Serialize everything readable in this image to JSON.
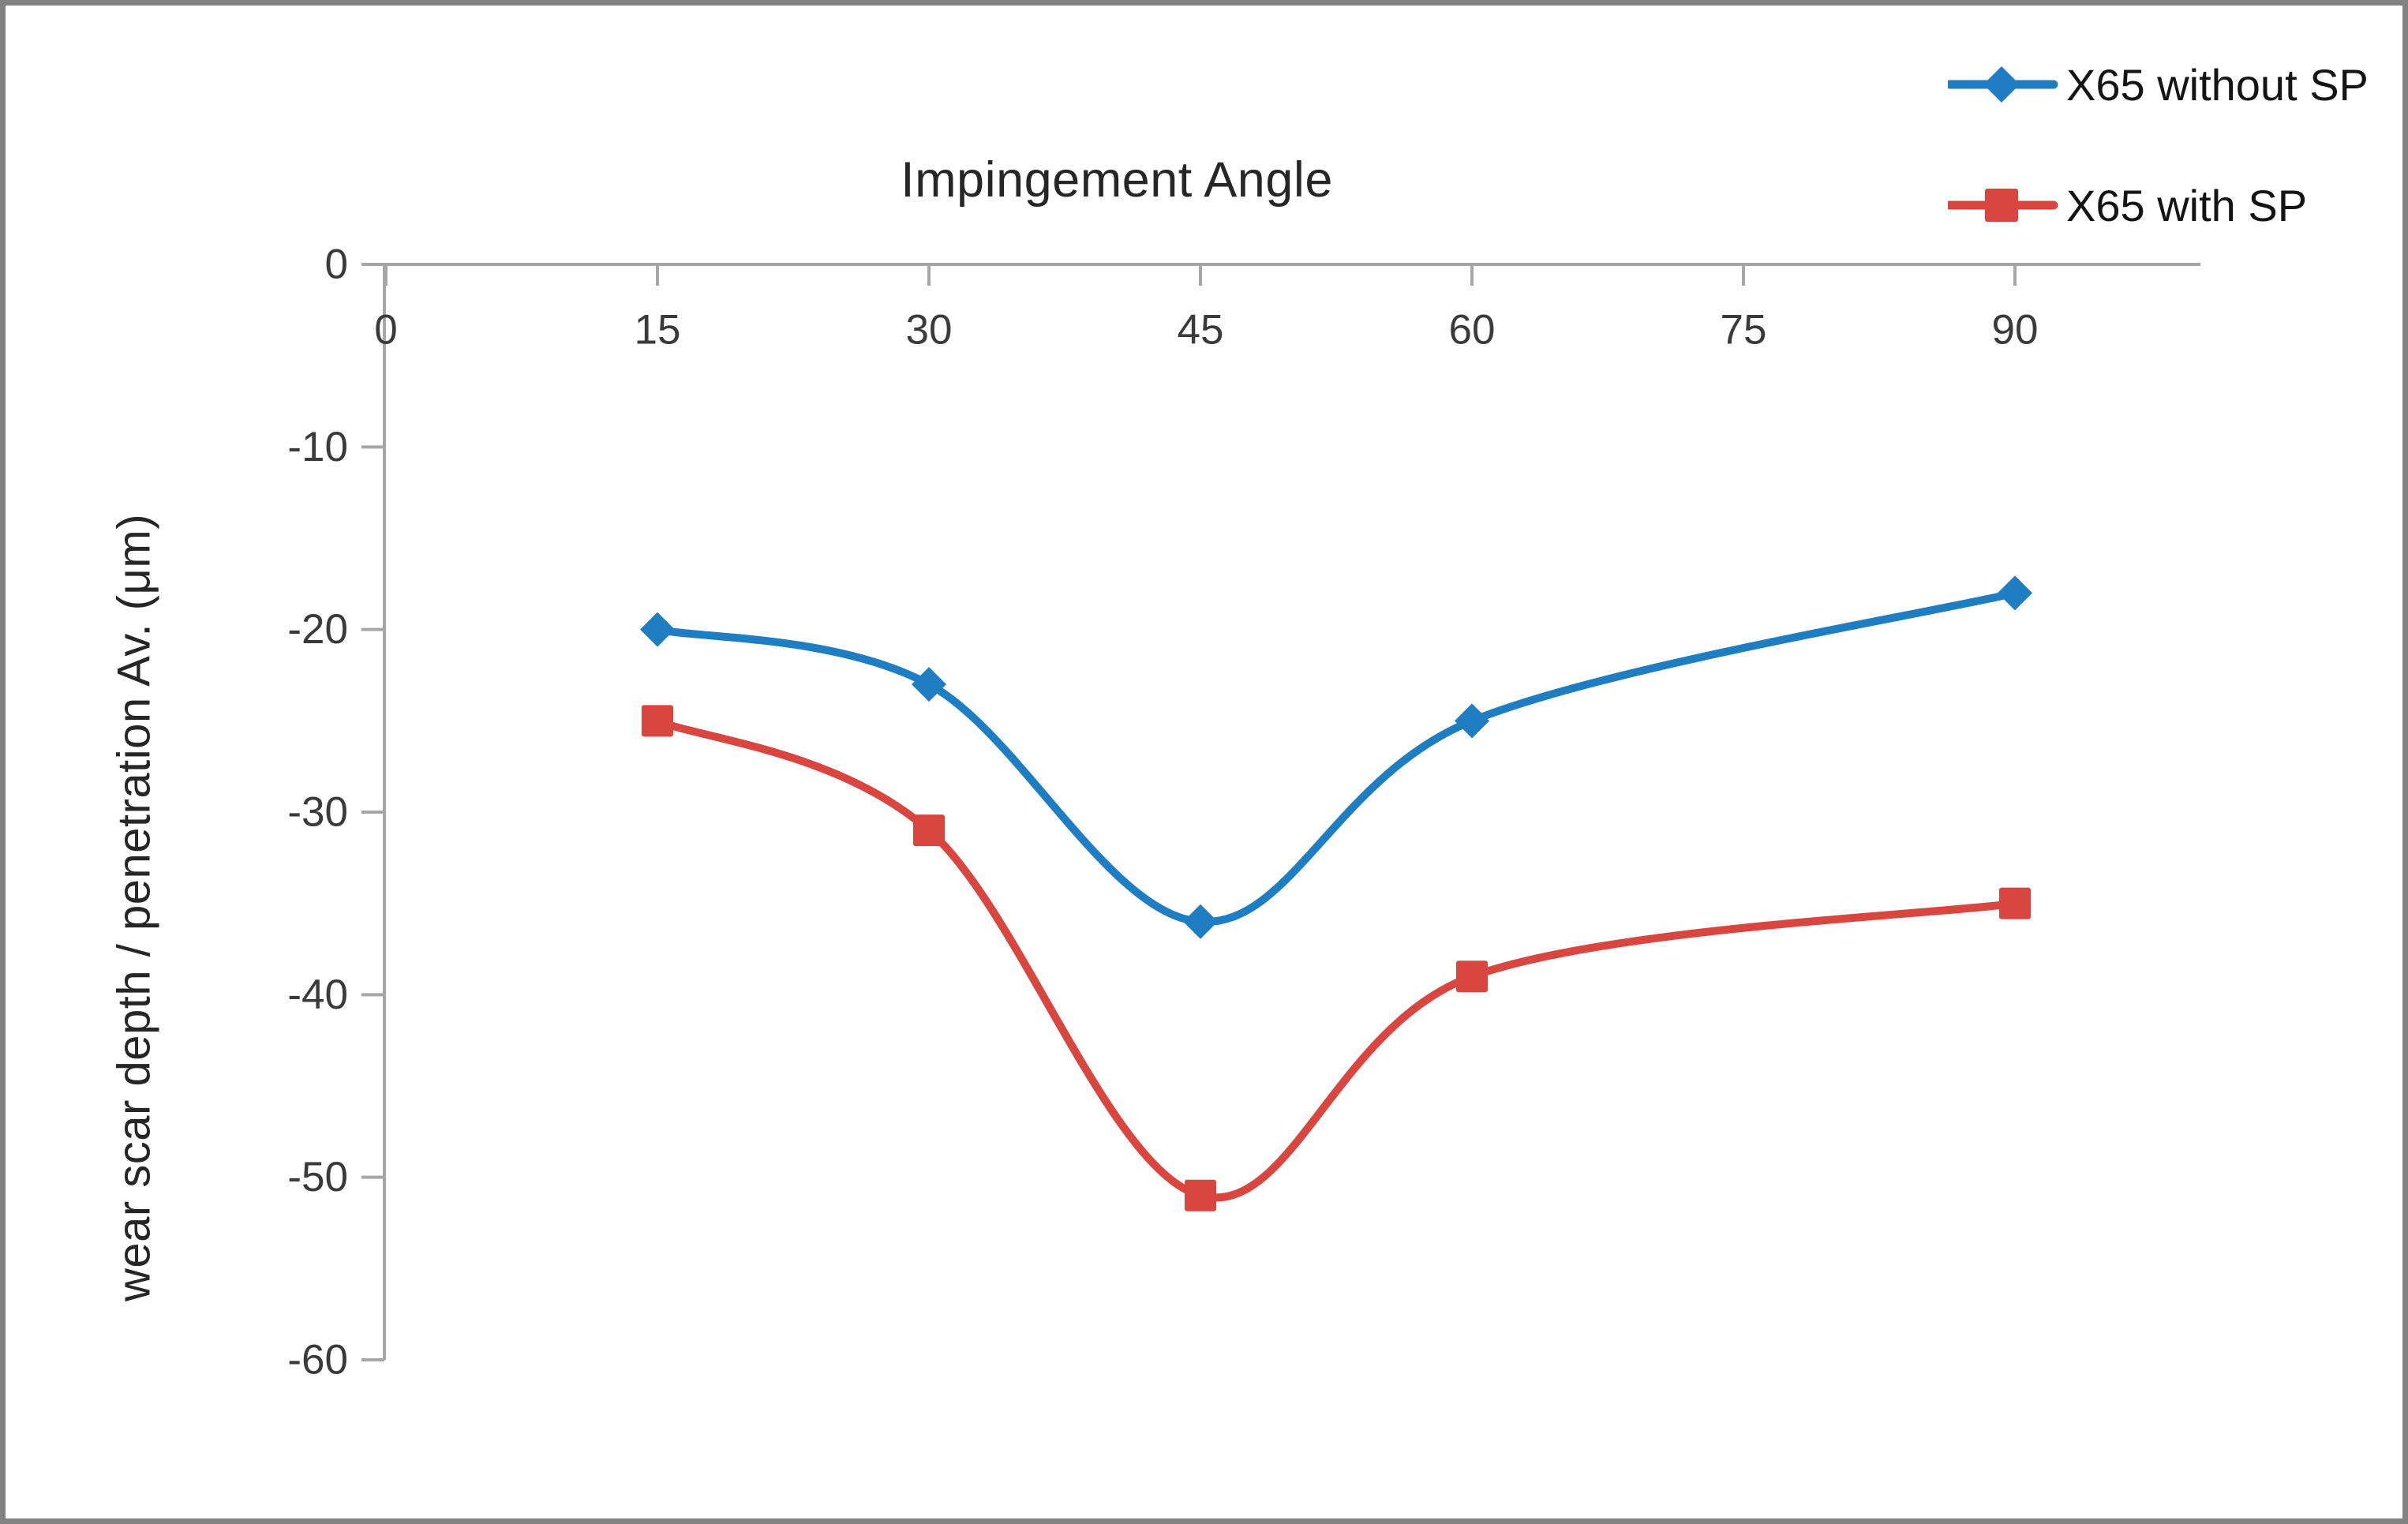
{
  "chart_data": {
    "type": "line",
    "title": "Impingement Angle",
    "xlabel": "",
    "ylabel": "wear scar depth / penetration Av. (μm)",
    "x": [
      15,
      30,
      45,
      60,
      90
    ],
    "series": [
      {
        "name": "X65 without SP",
        "marker": "diamond",
        "color": "#1F7EC2",
        "values": [
          -20,
          -23,
          -36,
          -25,
          -18
        ]
      },
      {
        "name": "X65 with SP",
        "marker": "square",
        "color": "#D8463F",
        "values": [
          -25,
          -31,
          -51,
          -39,
          -35
        ]
      }
    ],
    "x_ticks": [
      0,
      15,
      30,
      45,
      60,
      75,
      90
    ],
    "y_ticks": [
      0,
      -10,
      -20,
      -30,
      -40,
      -50,
      -60
    ],
    "xlim": [
      0,
      100
    ],
    "ylim": [
      0,
      -60
    ],
    "grid": false,
    "smooth": true,
    "legend_position": "top-right"
  },
  "colors": {
    "axis_line": "#A6A6A6",
    "tick_label": "#3A3A3A",
    "title_text": "#262626",
    "legend_text": "#141414",
    "border": "#828282",
    "background": "#FFFFFF"
  }
}
